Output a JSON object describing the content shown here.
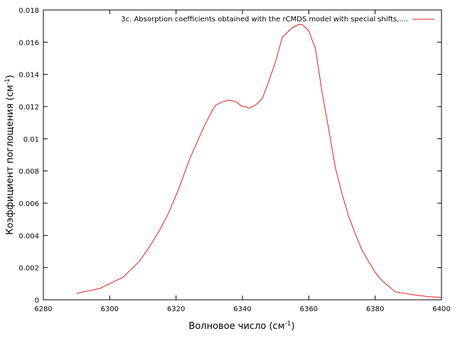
{
  "chart_data": {
    "type": "line",
    "title": "",
    "xlabel": "Волновое число (см",
    "xlabel_sup": "-1",
    "xlabel_end": ")",
    "ylabel": "Коэффициент поглощения (см",
    "ylabel_sup": "-1",
    "ylabel_end": ")",
    "xlim": [
      6280,
      6400
    ],
    "ylim": [
      0,
      0.018
    ],
    "x_ticks": [
      6280,
      6300,
      6320,
      6340,
      6360,
      6380,
      6400
    ],
    "x_tick_labels": [
      "6280",
      "6300",
      "6320",
      "6340",
      "6360",
      "6380",
      "6400"
    ],
    "y_ticks": [
      0,
      0.002,
      0.004,
      0.006,
      0.008,
      0.01,
      0.012,
      0.014,
      0.016,
      0.018
    ],
    "y_tick_labels": [
      "0",
      "0.002",
      "0.004",
      "0.006",
      "0.008",
      "0.01",
      "0.012",
      "0.014",
      "0.016",
      "0.018"
    ],
    "grid": false,
    "legend_position": "top-right",
    "series": [
      {
        "name": "3c. Absorption coefficients obtained with the rCMDS model with special shifts,....",
        "color": "#e41a1c",
        "x": [
          6290,
          6297,
          6301,
          6304,
          6306,
          6309,
          6312,
          6315,
          6318,
          6321,
          6324,
          6327,
          6329,
          6331,
          6332,
          6334,
          6336,
          6338,
          6340,
          6341,
          6342,
          6344,
          6346,
          6348,
          6350,
          6352,
          6354,
          6355,
          6356,
          6357,
          6358,
          6359,
          6360,
          6362,
          6364,
          6366,
          6368,
          6370,
          6372,
          6374,
          6376,
          6378,
          6380,
          6382,
          6386,
          6392,
          6396,
          6400
        ],
        "y": [
          0.0004,
          0.0007,
          0.0011,
          0.0014,
          0.0018,
          0.0024,
          0.0033,
          0.0043,
          0.0055,
          0.007,
          0.0087,
          0.0101,
          0.011,
          0.0118,
          0.0121,
          0.0123,
          0.0124,
          0.0123,
          0.012,
          0.012,
          0.0119,
          0.0121,
          0.0125,
          0.0136,
          0.0148,
          0.0163,
          0.0167,
          0.0169,
          0.017,
          0.0171,
          0.0171,
          0.0169,
          0.0167,
          0.0156,
          0.0129,
          0.0106,
          0.0082,
          0.0066,
          0.0052,
          0.0041,
          0.0031,
          0.0024,
          0.0017,
          0.0012,
          0.0005,
          0.0003,
          0.0002,
          0.00015
        ]
      }
    ]
  }
}
